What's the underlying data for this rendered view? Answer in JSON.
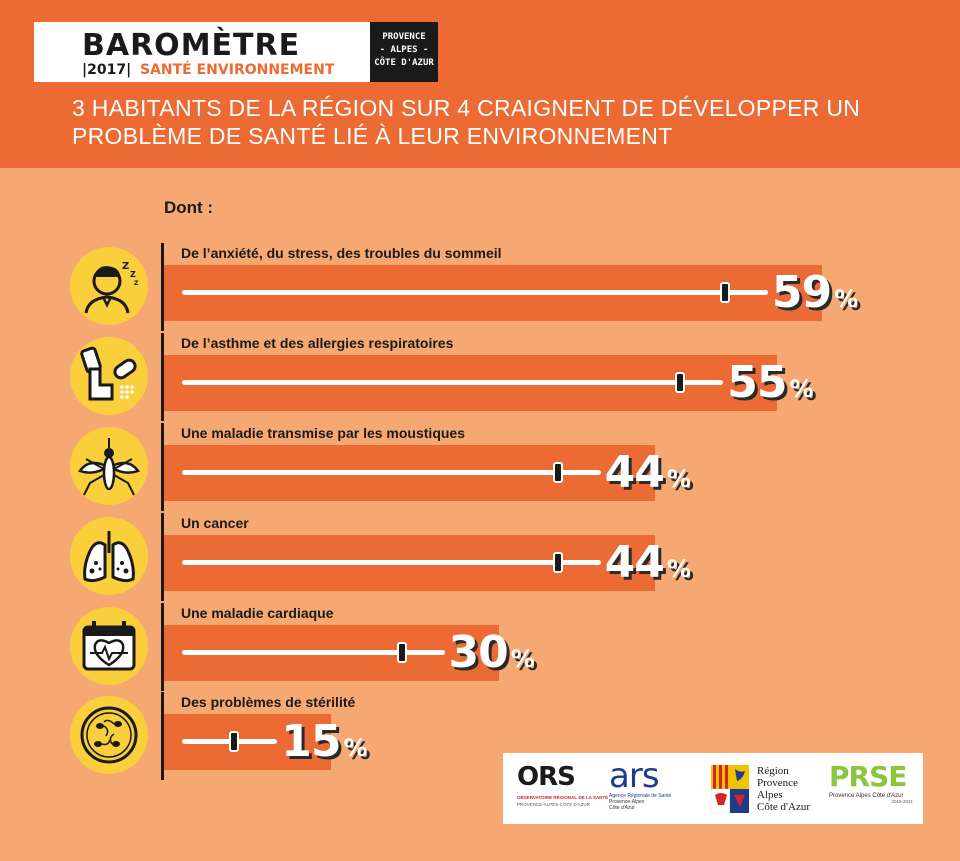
{
  "header": {
    "title": "BAROMÈTRE",
    "year": "|2017|",
    "subtitle": "SANTÉ ENVIRONNEMENT",
    "region_lines": [
      "PROVENCE",
      "- ALPES -",
      "CÔTE D'AZUR"
    ],
    "headline_line1": "3 HABITANTS DE LA RÉGION SUR 4 CRAIGNENT DE DÉVELOPPER UN",
    "headline_line2": "PROBLÈME DE SANTÉ LIÉ À LEUR ENVIRONNEMENT"
  },
  "intro": "Dont :",
  "chart_data": {
    "type": "bar",
    "categories": [
      "De l’anxiété, du stress, des troubles du sommeil",
      "De l’asthme et des allergies respiratoires",
      "Une maladie transmise par les moustiques",
      "Un cancer",
      "Une maladie cardiaque",
      "Des problèmes de stérilité"
    ],
    "values": [
      59,
      55,
      44,
      44,
      30,
      15
    ],
    "value_labels": [
      "59",
      "55",
      "44",
      "44",
      "30",
      "15"
    ],
    "unit": "%",
    "icons": [
      "sleepless-person-icon",
      "inhaler-pill-icon",
      "mosquito-icon",
      "lungs-icon",
      "calendar-heart-icon",
      "sperm-cells-icon"
    ]
  },
  "logos": {
    "ors": "ORS",
    "ors_caption1": "OBSERVATOIRE RÉGIONAL DE LA SANTÉ",
    "ors_caption2": "PROVENCE-ALPES-CÔTE D'AZUR",
    "ars": "ars",
    "ars_caption1": "Agence Régionale de Santé",
    "ars_caption2": "Provence-Alpes",
    "ars_caption3": "Côte d'Azur",
    "region_lines": [
      "Région",
      "Provence",
      "Alpes",
      "Côte d'Azur"
    ],
    "prse": "PRSE",
    "prse_caption1": "Provence Alpes Côte d'Azur",
    "prse_caption2": "2015-2021"
  },
  "colors": {
    "background": "#f6a872",
    "accent": "#ec6a33",
    "icon_circle": "#f9cf3c",
    "dark": "#1a1a1a"
  }
}
